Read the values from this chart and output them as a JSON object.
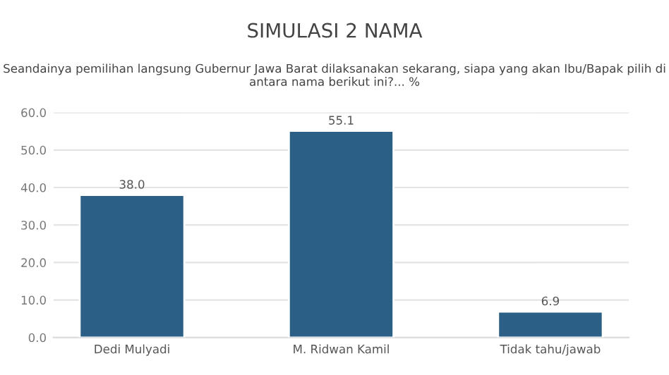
{
  "chart_data": {
    "type": "bar",
    "title": "SIMULASI 2 NAMA",
    "subtitle": "Seandainya pemilihan langsung Gubernur Jawa Barat dilaksanakan sekarang, siapa yang akan Ibu/Bapak pilih di antara nama berikut ini?... %",
    "categories": [
      "Dedi Mulyadi",
      "M. Ridwan Kamil",
      "Tidak tahu/jawab"
    ],
    "values": [
      38.0,
      55.1,
      6.9
    ],
    "value_labels": [
      "38.0",
      "55.1",
      "6.9"
    ],
    "color": "#2b5f85",
    "ylim": [
      0,
      60
    ],
    "yticks": [
      {
        "value": 0,
        "label": "0.0"
      },
      {
        "value": 10,
        "label": "10.0"
      },
      {
        "value": 20,
        "label": "20.0"
      },
      {
        "value": 30,
        "label": "30.0"
      },
      {
        "value": 40,
        "label": "40.0"
      },
      {
        "value": 50,
        "label": "50.0"
      },
      {
        "value": 60,
        "label": "60.0"
      }
    ],
    "grid": "y"
  }
}
